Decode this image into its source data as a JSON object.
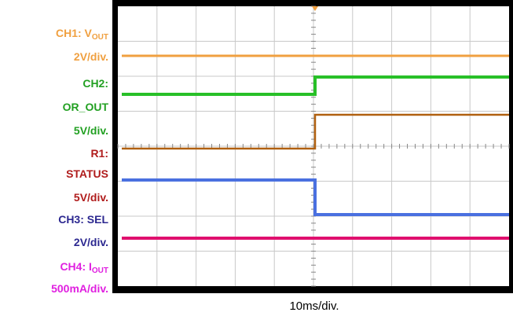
{
  "labels": [
    {
      "text": "CH1: V",
      "sub": "OUT",
      "color": "#f0a040"
    },
    {
      "text": "2V/div.",
      "color": "#f0a040"
    },
    {
      "text": "CH2:",
      "color": "#22a022"
    },
    {
      "text": "OR_OUT",
      "color": "#22a022"
    },
    {
      "text": "5V/div.",
      "color": "#22a022"
    },
    {
      "text": "R1:",
      "color": "#b01c1c"
    },
    {
      "text": "STATUS",
      "color": "#b01c1c"
    },
    {
      "text": "5V/div.",
      "color": "#b01c1c"
    },
    {
      "text": "CH3: SEL",
      "color": "#2c2890"
    },
    {
      "text": "2V/div.",
      "color": "#2c2890"
    },
    {
      "text": "CH4: I",
      "sub": "OUT",
      "color": "#e020e0"
    },
    {
      "text": "500mA/div.",
      "color": "#e020e0"
    }
  ],
  "time_scale": "10ms/div."
}
